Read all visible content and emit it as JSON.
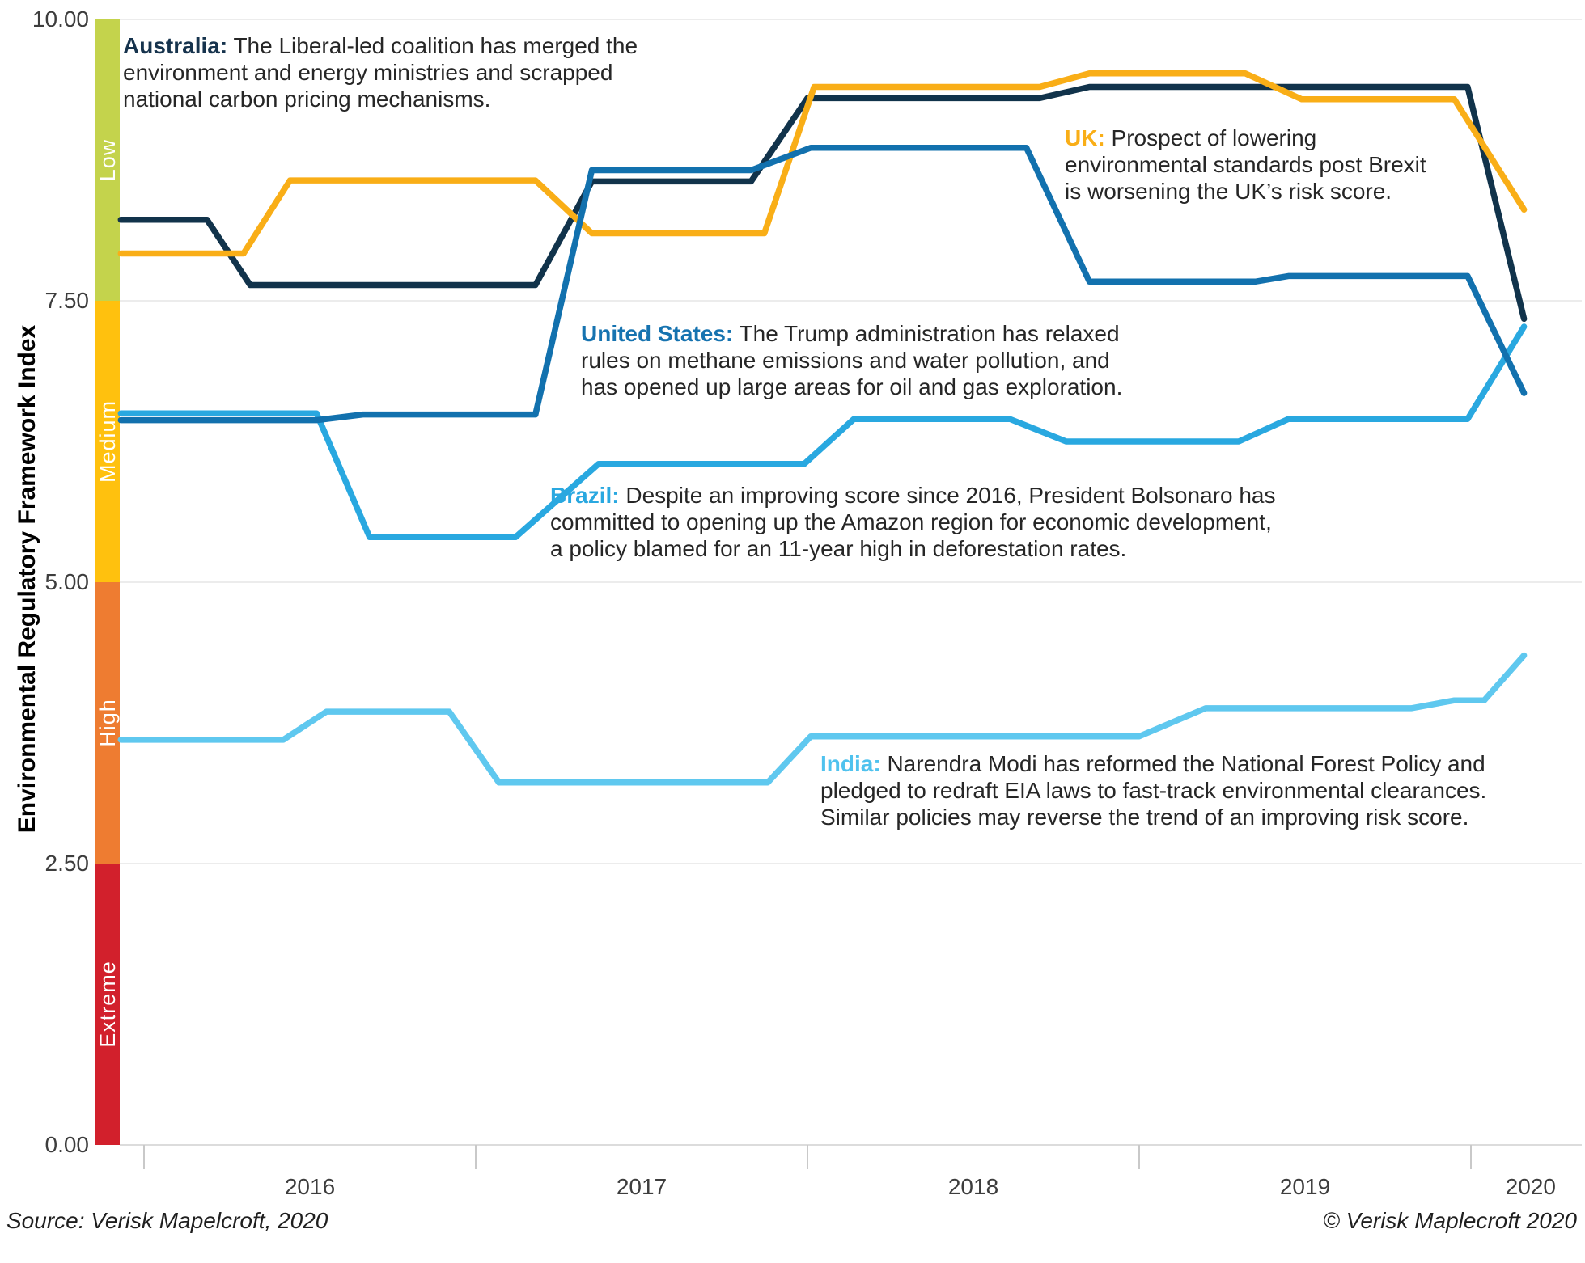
{
  "figure": {
    "y_axis_title": "Environmental Regulatory Framework Index",
    "source_left": "Source: Verisk Mapelcroft, 2020",
    "source_right": "© Verisk Maplecroft 2020"
  },
  "chart_data": {
    "type": "line",
    "title": "",
    "xlabel": "",
    "ylabel": "Environmental Regulatory Framework Index",
    "ylim": [
      0,
      10
    ],
    "x_range_years": [
      2015.93,
      2020.16
    ],
    "grid": "horizontal",
    "legend_position": "none (inline annotations)",
    "y_ticks": [
      {
        "value": 10.0,
        "label": "10.00"
      },
      {
        "value": 7.5,
        "label": "7.50"
      },
      {
        "value": 5.0,
        "label": "5.00"
      },
      {
        "value": 2.5,
        "label": "2.50"
      },
      {
        "value": 0.0,
        "label": "0.00"
      }
    ],
    "x_ticks": {
      "boundary_years": [
        2016,
        2017,
        2018,
        2019,
        2020
      ],
      "labels": [
        "2016",
        "2017",
        "2018",
        "2019",
        "2020"
      ]
    },
    "bands": [
      {
        "label": "Low",
        "from": 7.5,
        "to": 10.0,
        "color": "#c4d34c"
      },
      {
        "label": "Medium",
        "from": 5.0,
        "to": 7.5,
        "color": "#ffc10e"
      },
      {
        "label": "High",
        "from": 2.5,
        "to": 5.0,
        "color": "#ee7c31"
      },
      {
        "label": "Extreme",
        "from": 0.0,
        "to": 2.5,
        "color": "#d2202c"
      }
    ],
    "series": [
      {
        "id": "india",
        "name": "India",
        "color": "#5fc8ef",
        "points": [
          [
            2015.93,
            3.6
          ],
          [
            2016.42,
            3.6
          ],
          [
            2016.55,
            3.85
          ],
          [
            2016.92,
            3.85
          ],
          [
            2017.07,
            3.22
          ],
          [
            2017.88,
            3.22
          ],
          [
            2018.01,
            3.63
          ],
          [
            2019.0,
            3.63
          ],
          [
            2019.2,
            3.88
          ],
          [
            2019.82,
            3.88
          ],
          [
            2019.95,
            3.95
          ],
          [
            2020.04,
            3.95
          ],
          [
            2020.16,
            4.35
          ]
        ]
      },
      {
        "id": "brazil",
        "name": "Brazil",
        "color": "#29a8e0",
        "points": [
          [
            2015.93,
            6.5
          ],
          [
            2016.52,
            6.5
          ],
          [
            2016.68,
            5.4
          ],
          [
            2017.12,
            5.4
          ],
          [
            2017.37,
            6.05
          ],
          [
            2017.99,
            6.05
          ],
          [
            2018.14,
            6.45
          ],
          [
            2018.61,
            6.45
          ],
          [
            2018.78,
            6.25
          ],
          [
            2019.3,
            6.25
          ],
          [
            2019.45,
            6.45
          ],
          [
            2019.99,
            6.45
          ],
          [
            2020.16,
            7.27
          ]
        ]
      },
      {
        "id": "australia",
        "name": "Australia",
        "color": "#11334b",
        "points": [
          [
            2015.93,
            8.22
          ],
          [
            2016.19,
            8.22
          ],
          [
            2016.32,
            7.64
          ],
          [
            2017.18,
            7.64
          ],
          [
            2017.35,
            8.56
          ],
          [
            2017.83,
            8.56
          ],
          [
            2018.0,
            9.3
          ],
          [
            2018.7,
            9.3
          ],
          [
            2018.85,
            9.4
          ],
          [
            2019.99,
            9.4
          ],
          [
            2020.16,
            7.34
          ]
        ]
      },
      {
        "id": "uk",
        "name": "UK",
        "color": "#f9ae17",
        "points": [
          [
            2015.93,
            7.92
          ],
          [
            2016.3,
            7.92
          ],
          [
            2016.44,
            8.57
          ],
          [
            2017.18,
            8.57
          ],
          [
            2017.35,
            8.1
          ],
          [
            2017.87,
            8.1
          ],
          [
            2018.02,
            9.4
          ],
          [
            2018.7,
            9.4
          ],
          [
            2018.85,
            9.52
          ],
          [
            2019.32,
            9.52
          ],
          [
            2019.49,
            9.29
          ],
          [
            2019.95,
            9.29
          ],
          [
            2020.16,
            8.31
          ]
        ]
      },
      {
        "id": "united-states",
        "name": "United States",
        "color": "#1271ae",
        "points": [
          [
            2015.93,
            6.44
          ],
          [
            2016.52,
            6.44
          ],
          [
            2016.66,
            6.49
          ],
          [
            2017.18,
            6.49
          ],
          [
            2017.35,
            8.66
          ],
          [
            2017.83,
            8.66
          ],
          [
            2018.01,
            8.86
          ],
          [
            2018.66,
            8.86
          ],
          [
            2018.85,
            7.67
          ],
          [
            2019.35,
            7.67
          ],
          [
            2019.45,
            7.72
          ],
          [
            2019.99,
            7.72
          ],
          [
            2020.16,
            6.68
          ]
        ]
      }
    ]
  },
  "annotations": [
    {
      "id": "australia",
      "label": "Australia:",
      "color": "#16334d",
      "text": "The Liberal-led coalition has merged the\nenvironment and energy ministries and scrapped\nnational carbon pricing mechanisms."
    },
    {
      "id": "uk",
      "label": "UK:",
      "color": "#f9ae17",
      "text": "Prospect of lowering\nenvironmental standards post Brexit\nis worsening the UK’s risk score."
    },
    {
      "id": "united-states",
      "label": "United States:",
      "color": "#1673b0",
      "text": "The Trump administration has relaxed\nrules on methane emissions and water pollution, and\nhas opened up large areas for oil and gas exploration."
    },
    {
      "id": "brazil",
      "label": "Brazil:",
      "color": "#29a8e0",
      "text": "Despite an improving score since 2016, President Bolsonaro has\ncommitted to opening up the Amazon region for economic development,\na policy blamed for an 11-year high in deforestation rates."
    },
    {
      "id": "india",
      "label": "India:",
      "color": "#4fc2ee",
      "text": "Narendra Modi has reformed the National Forest Policy and\npledged to redraft EIA laws to fast-track environmental clearances.\nSimilar policies may reverse the trend of an improving risk score."
    }
  ]
}
